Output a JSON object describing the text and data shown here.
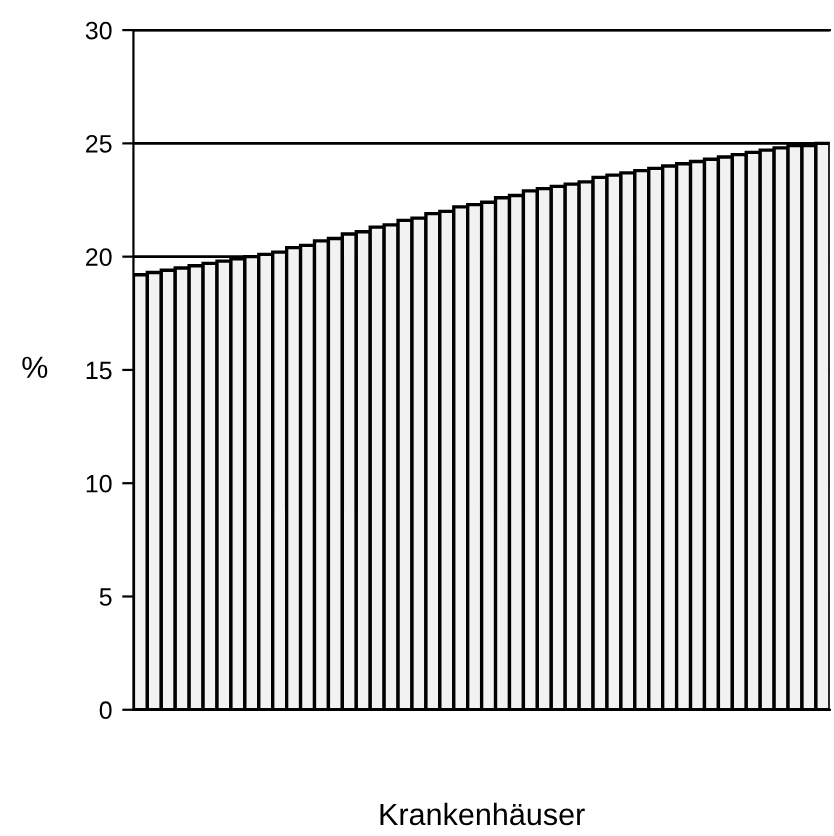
{
  "chart_data": {
    "type": "bar",
    "xlabel": "Krankenhäuser",
    "ylabel": "%",
    "categories": [
      null,
      null,
      null,
      null,
      null,
      null,
      null,
      null,
      null,
      null,
      null,
      null,
      null,
      null,
      null,
      null,
      null,
      null,
      null,
      null,
      null,
      null,
      null,
      null,
      null,
      null,
      null,
      null,
      null,
      null,
      null,
      null,
      null,
      null,
      null,
      null,
      null,
      null,
      null,
      null,
      null,
      null,
      null,
      null,
      null,
      null,
      null,
      null,
      null,
      null
    ],
    "values": [
      19.2,
      19.3,
      19.4,
      19.5,
      19.6,
      19.7,
      19.8,
      19.9,
      20.0,
      20.1,
      20.2,
      20.4,
      20.5,
      20.7,
      20.8,
      21.0,
      21.1,
      21.3,
      21.4,
      21.6,
      21.7,
      21.9,
      22.0,
      22.2,
      22.3,
      22.4,
      22.6,
      22.7,
      22.9,
      23.0,
      23.1,
      23.2,
      23.3,
      23.5,
      23.6,
      23.7,
      23.8,
      23.9,
      24.0,
      24.1,
      24.2,
      24.3,
      24.4,
      24.5,
      24.6,
      24.7,
      24.8,
      24.9,
      24.9,
      25.0
    ],
    "color": "#f2f2f2",
    "ylim": [
      0,
      30
    ],
    "yticks": [
      0,
      5,
      10,
      15,
      20,
      25,
      30
    ],
    "grid": "y"
  }
}
